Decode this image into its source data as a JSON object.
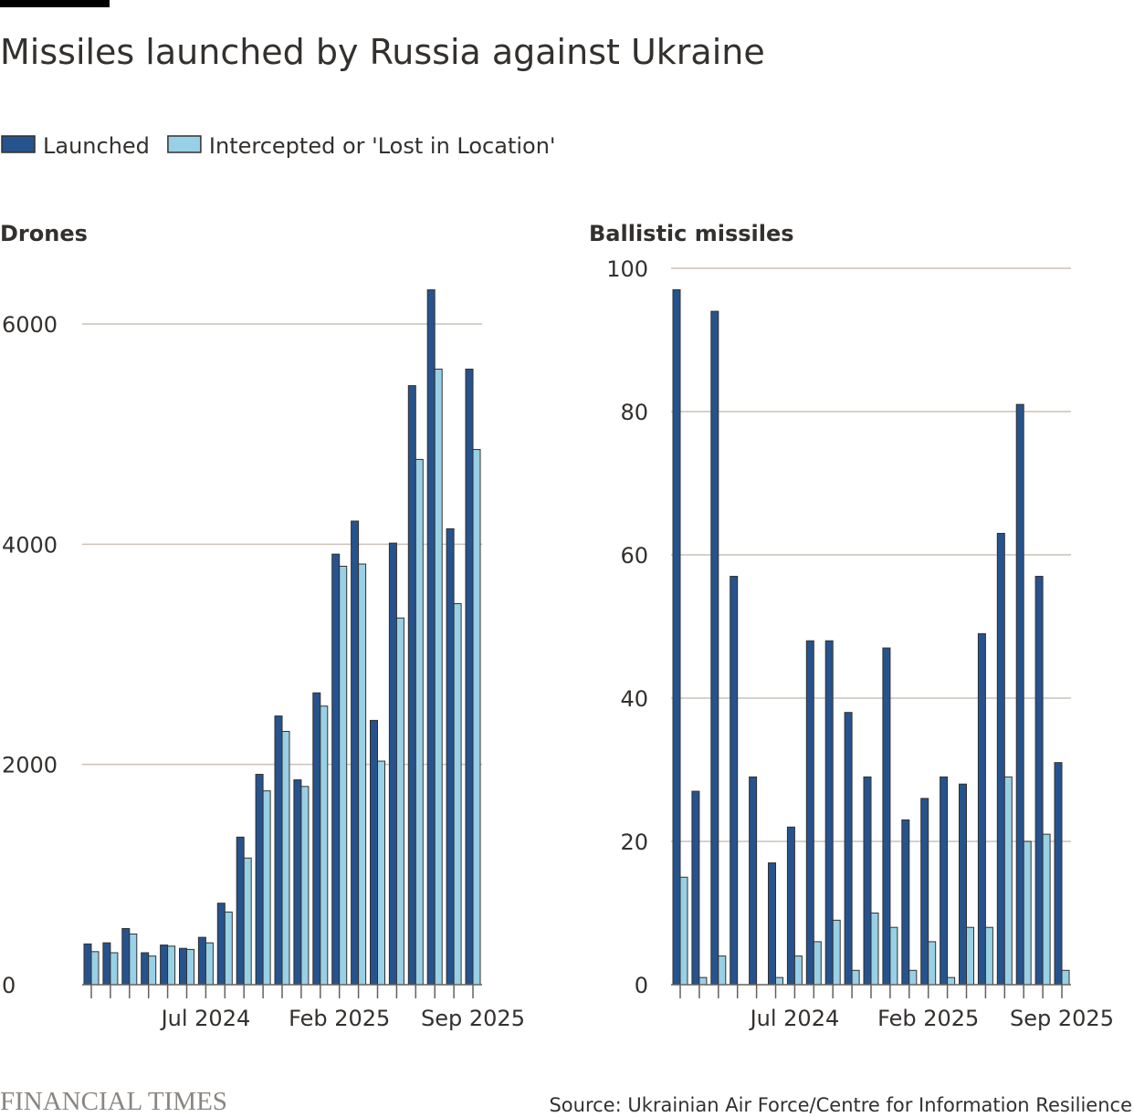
{
  "title": "Missiles launched by Russia against Ukraine",
  "source": "Source: Ukrainian Air Force/Centre for Information Resilience",
  "logo": "FINANCIAL TIMES",
  "chart_data": [
    {
      "type": "bar",
      "title": "Drones",
      "categories": [
        null,
        null,
        null,
        null,
        null,
        null,
        "Jul 2024",
        null,
        null,
        null,
        null,
        null,
        null,
        "Feb 2025",
        null,
        null,
        null,
        null,
        null,
        null,
        "Sep 2025"
      ],
      "series": [
        {
          "name": "Launched",
          "color": "#26538d",
          "values": [
            370,
            380,
            510,
            290,
            360,
            330,
            430,
            740,
            1340,
            1910,
            2440,
            1860,
            2650,
            3910,
            4210,
            2400,
            4010,
            5440,
            6310,
            4140,
            5590
          ]
        },
        {
          "name": "Intercepted or 'Lost in Location'",
          "color": "#98d0e6",
          "values": [
            300,
            290,
            460,
            260,
            350,
            320,
            380,
            660,
            1150,
            1760,
            2300,
            1800,
            2530,
            3800,
            3820,
            2030,
            3330,
            4770,
            5590,
            3460,
            4860
          ]
        }
      ],
      "ylim": [
        0,
        6000
      ],
      "yticks": [
        0,
        2000,
        4000,
        6000
      ],
      "grid": true
    },
    {
      "type": "bar",
      "title": "Ballistic missiles",
      "categories": [
        null,
        null,
        null,
        null,
        null,
        null,
        "Jul 2024",
        null,
        null,
        null,
        null,
        null,
        null,
        "Feb 2025",
        null,
        null,
        null,
        null,
        null,
        null,
        "Sep 2025"
      ],
      "series": [
        {
          "color": "#26538d",
          "values": [
            97,
            27,
            94,
            57,
            29,
            17,
            22,
            48,
            48,
            38,
            29,
            47,
            23,
            26,
            29,
            28,
            49,
            63,
            81,
            57,
            31
          ]
        },
        {
          "color": "#98d0e6",
          "values": [
            15,
            1,
            4,
            0,
            0,
            1,
            4,
            6,
            9,
            2,
            10,
            8,
            2,
            6,
            1,
            8,
            8,
            29,
            20,
            21,
            2
          ]
        }
      ],
      "ylim": [
        0,
        100
      ],
      "yticks": [
        0,
        20,
        40,
        60,
        80,
        100
      ],
      "grid": true
    }
  ]
}
